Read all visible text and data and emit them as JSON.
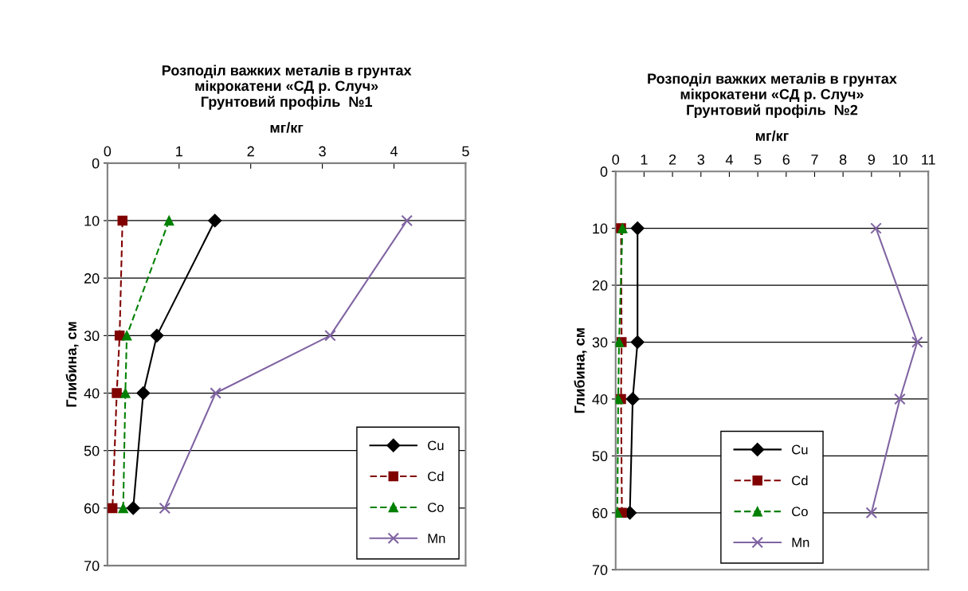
{
  "chart_data": [
    {
      "type": "line",
      "title": "Розподіл важких металів в грунтах\nмікрокатени «СД р. Случ»\nГрунтовий профіль  №1",
      "xlabel": "мг/кг",
      "ylabel": "Глибина, см",
      "xlim": [
        0,
        5
      ],
      "xticks": [
        0,
        1,
        2,
        3,
        4,
        5
      ],
      "ylim": [
        70,
        0
      ],
      "yticks": [
        0,
        10,
        20,
        30,
        40,
        50,
        60,
        70
      ],
      "grid": "y",
      "legend": "bottom right",
      "series": [
        {
          "name": "Cu",
          "color": "#000000",
          "marker": "diamond",
          "line_style": "solid",
          "x": [
            1.5,
            0.69,
            0.5,
            0.36
          ],
          "values": [
            10,
            30,
            40,
            60
          ]
        },
        {
          "name": "Cd",
          "color": "#800000",
          "marker": "square",
          "line_style": "dashed",
          "x": [
            0.21,
            0.17,
            0.13,
            0.07
          ],
          "values": [
            10,
            30,
            40,
            60
          ]
        },
        {
          "name": "Co",
          "color": "#008000",
          "marker": "triangle",
          "line_style": "dashed",
          "x": [
            0.86,
            0.27,
            0.25,
            0.22
          ],
          "values": [
            10,
            30,
            40,
            60
          ]
        },
        {
          "name": "Mn",
          "color": "#8064a2",
          "marker": "cross",
          "line_style": "solid",
          "x": [
            4.18,
            3.11,
            1.51,
            0.8
          ],
          "values": [
            10,
            30,
            40,
            60
          ]
        }
      ]
    },
    {
      "type": "line",
      "title": "Розподіл важких металів в грунтах\nмікрокатени «СД р. Случ»\nГрунтовий профіль  №2",
      "xlabel": "мг/кг",
      "ylabel": "Глибина, см",
      "xlim": [
        0,
        11
      ],
      "xticks": [
        0,
        1,
        2,
        3,
        4,
        5,
        6,
        7,
        8,
        9,
        10,
        11
      ],
      "ylim": [
        70,
        0
      ],
      "yticks": [
        0,
        10,
        20,
        30,
        40,
        50,
        60,
        70
      ],
      "grid": "y",
      "legend": "bottom",
      "series": [
        {
          "name": "Cu",
          "color": "#000000",
          "marker": "diamond",
          "line_style": "solid",
          "x": [
            0.77,
            0.77,
            0.6,
            0.5
          ],
          "values": [
            10,
            30,
            40,
            60
          ]
        },
        {
          "name": "Cd",
          "color": "#800000",
          "marker": "square",
          "line_style": "dashed",
          "x": [
            0.19,
            0.21,
            0.19,
            0.22
          ],
          "values": [
            10,
            30,
            40,
            60
          ]
        },
        {
          "name": "Co",
          "color": "#008000",
          "marker": "triangle",
          "line_style": "dashed",
          "x": [
            0.24,
            0.12,
            0.09,
            0.06
          ],
          "values": [
            10,
            30,
            40,
            60
          ]
        },
        {
          "name": "Mn",
          "color": "#8064a2",
          "marker": "cross",
          "line_style": "solid",
          "x": [
            9.16,
            10.61,
            10.0,
            9.0
          ],
          "values": [
            10,
            30,
            40,
            60
          ]
        }
      ]
    }
  ]
}
